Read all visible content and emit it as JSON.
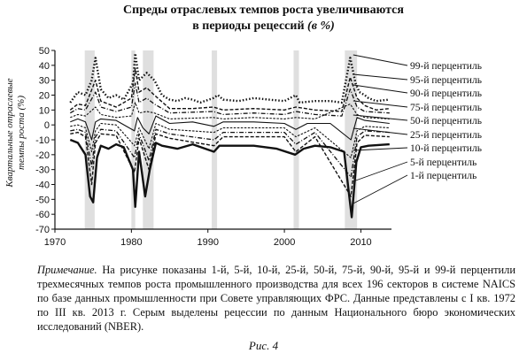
{
  "figure": {
    "title_line1": "Спреды отраслевых темпов роста увеличиваются",
    "title_line2": "в периоды рецессий",
    "title_unit": "(в %)",
    "note_label": "Примечание.",
    "note_text": "На рисунке показаны 1-й, 5-й, 10-й, 25-й, 50-й, 75-й, 90-й, 95-й и 99-й перцентили трехмесячных темпов роста промышленного производства для всех 196 секторов в системе NAICS по базе данных промышленности при Совете управляющих ФРС. Данные представлены с I кв. 1972 по III кв. 2013 г. Серым выделены рецессии по данным Национального бюро экономических исследований (NBER).",
    "caption": "Рис. 4"
  },
  "chart_data": {
    "type": "line",
    "title": "Спреды отраслевых темпов роста увеличиваются в периоды рецессий (в %)",
    "ylabel": "Квартальные отраслевые темпы роста (%)",
    "xlabel": "",
    "xlim": [
      1972,
      2013.75
    ],
    "ylim": [
      -70,
      50
    ],
    "x_ticks": [
      "1970",
      "1980",
      "1990",
      "2000",
      "2010"
    ],
    "y_ticks": [
      "50",
      "40",
      "30",
      "20",
      "10",
      "0",
      "-10",
      "-20",
      "-30",
      "-40",
      "-50",
      "-60",
      "-70"
    ],
    "grid": false,
    "legend_position": "right, labels with leader lines",
    "recessions": [
      [
        1973.9,
        1975.2
      ],
      [
        1980.0,
        1980.5
      ],
      [
        1981.5,
        1982.9
      ],
      [
        1990.5,
        1991.2
      ],
      [
        2001.2,
        2001.9
      ],
      [
        2007.9,
        2009.5
      ]
    ],
    "recession_color": "#c4c4c4",
    "series": [
      {
        "name": "99-й перцентиль",
        "style": "dotted-bold",
        "x": [
          1972,
          1973,
          1974,
          1974.8,
          1975.3,
          1976,
          1977,
          1978,
          1979,
          1980.2,
          1980.5,
          1981,
          1982,
          1983,
          1984,
          1985,
          1986,
          1987,
          1988,
          1989,
          1990.7,
          1991.3,
          1992,
          1994,
          1996,
          1998,
          2000,
          2001.5,
          2002,
          2004,
          2006,
          2007.5,
          2008.6,
          2009.3,
          2009.8,
          2010.5,
          2011,
          2012,
          2013.75
        ],
        "values": [
          15,
          22,
          20,
          30,
          45,
          24,
          18,
          20,
          17,
          28,
          48,
          30,
          35,
          30,
          20,
          17,
          16,
          18,
          17,
          15,
          18,
          20,
          17,
          16,
          18,
          17,
          16,
          20,
          15,
          16,
          16,
          15,
          45,
          28,
          22,
          20,
          18,
          16,
          17
        ]
      },
      {
        "name": "95-й перцентиль",
        "style": "dashed",
        "x": [
          1972,
          1973,
          1974,
          1975.3,
          1976,
          1978,
          1980,
          1980.5,
          1981,
          1982,
          1983,
          1985,
          1988,
          1990.7,
          1992,
          1996,
          2000,
          2001.5,
          2004,
          2007.5,
          2008.6,
          2009.5,
          2010.5,
          2012,
          2013.75
        ],
        "values": [
          10,
          14,
          13,
          30,
          16,
          12,
          18,
          38,
          22,
          25,
          20,
          11,
          11,
          12,
          10,
          11,
          10,
          12,
          10,
          9,
          32,
          18,
          13,
          10,
          11
        ]
      },
      {
        "name": "90-й перцентиль",
        "style": "dash-dot",
        "x": [
          1972,
          1973,
          1974,
          1975.3,
          1976,
          1978,
          1980,
          1980.5,
          1981,
          1982,
          1983,
          1985,
          1990.7,
          1992,
          1996,
          2000,
          2001.5,
          2004,
          2007.5,
          2008.6,
          2009.5,
          2010.5,
          2013.75
        ],
        "values": [
          8,
          11,
          10,
          22,
          12,
          9,
          12,
          28,
          15,
          18,
          14,
          8,
          9,
          7,
          8,
          7,
          9,
          7,
          6,
          24,
          12,
          9,
          8
        ]
      },
      {
        "name": "75-й перцентиль",
        "style": "dashed-fine",
        "x": [
          1972,
          1973,
          1974,
          1975.3,
          1976,
          1978,
          1980,
          1980.5,
          1981,
          1982,
          1983,
          1985,
          1990.7,
          1992,
          1996,
          2000,
          2001.5,
          2004,
          2008.6,
          2009.5,
          2010.5,
          2013.75
        ],
        "values": [
          5,
          7,
          6,
          12,
          7,
          5,
          6,
          15,
          8,
          9,
          8,
          4,
          5,
          4,
          5,
          4,
          5,
          4,
          14,
          7,
          5,
          4
        ]
      },
      {
        "name": "50-й перцентиль",
        "style": "solid-thin",
        "x": [
          1972,
          1973,
          1974,
          1974.8,
          1975.3,
          1976,
          1978,
          1980.4,
          1980.8,
          1981.5,
          1982.3,
          1983.2,
          1985,
          1988,
          1990.8,
          1992,
          1996,
          2000,
          2001.5,
          2003,
          2006,
          2008.7,
          2009.5,
          2010.5,
          2013.75
        ],
        "values": [
          2,
          4,
          2,
          -10,
          2,
          4,
          3,
          -4,
          5,
          -2,
          -6,
          6,
          1,
          2,
          -1,
          2,
          2,
          1,
          -3,
          1,
          1,
          -10,
          5,
          3,
          1
        ]
      },
      {
        "name": "25-й перцентиль",
        "style": "dashed-fine",
        "x": [
          1972,
          1973,
          1974,
          1974.8,
          1975.3,
          1976,
          1978,
          1980.4,
          1981,
          1982.3,
          1983.2,
          1985,
          1990.8,
          1992,
          2000,
          2001.5,
          2004,
          2008.7,
          2009.5,
          2010.5,
          2013.75
        ],
        "values": [
          -1,
          0,
          -2,
          -18,
          -4,
          1,
          0,
          -14,
          -2,
          -16,
          1,
          -3,
          -5,
          -2,
          -2,
          -8,
          -2,
          -22,
          -4,
          -1,
          -2
        ]
      },
      {
        "name": "10-й перцентиль",
        "style": "dash-dot",
        "x": [
          1972,
          1973,
          1974,
          1974.8,
          1975.3,
          1976,
          1978,
          1980.4,
          1981,
          1982.3,
          1983.2,
          1985,
          1990.8,
          1992,
          2000,
          2001.5,
          2004,
          2008.7,
          2009.5,
          2010.5,
          2013.75
        ],
        "values": [
          -4,
          -3,
          -5,
          -28,
          -8,
          -3,
          -4,
          -22,
          -6,
          -24,
          -3,
          -6,
          -10,
          -5,
          -5,
          -13,
          -5,
          -35,
          -8,
          -4,
          -5
        ]
      },
      {
        "name": "5-й перцентиль",
        "style": "dashed",
        "x": [
          1972,
          1973,
          1974,
          1974.8,
          1975.3,
          1976,
          1978,
          1980.4,
          1981,
          1982.3,
          1983.2,
          1985,
          1990.8,
          1992,
          2000,
          2001.5,
          2004,
          2008.7,
          2009.5,
          2010.5,
          2013.75
        ],
        "values": [
          -6,
          -5,
          -8,
          -40,
          -12,
          -6,
          -7,
          -32,
          -9,
          -30,
          -6,
          -9,
          -14,
          -8,
          -8,
          -18,
          -8,
          -48,
          -12,
          -7,
          -8
        ]
      },
      {
        "name": "1-й перцентиль",
        "style": "solid-bold",
        "x": [
          1972,
          1973,
          1974,
          1974.6,
          1975,
          1975.5,
          1976,
          1977,
          1978,
          1979,
          1980.2,
          1980.5,
          1981,
          1981.8,
          1982.4,
          1983.2,
          1984,
          1986,
          1988,
          1990.8,
          1991.5,
          1993,
          1996,
          1999,
          2001.4,
          2002.5,
          2004,
          2006,
          2007.8,
          2008.8,
          2009.4,
          2010,
          2011,
          2013.75
        ],
        "values": [
          -10,
          -12,
          -20,
          -48,
          -52,
          -22,
          -14,
          -16,
          -13,
          -15,
          -30,
          -55,
          -18,
          -48,
          -30,
          -12,
          -14,
          -16,
          -13,
          -18,
          -14,
          -14,
          -14,
          -16,
          -20,
          -16,
          -14,
          -15,
          -18,
          -62,
          -25,
          -15,
          -14,
          -13
        ]
      }
    ]
  }
}
